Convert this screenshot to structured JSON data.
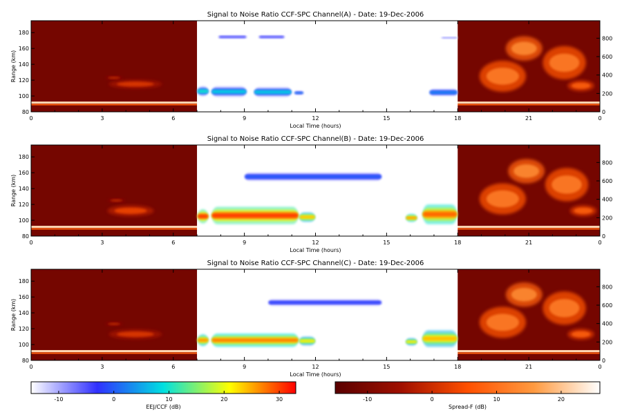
{
  "chart_data": [
    {
      "type": "heatmap",
      "title": "Signal to Noise Ratio CCF-SPC Channel(A) - Date: 19-Dec-2006",
      "xlabel": "Local Time (hours)",
      "ylabel": "Range (km)",
      "xlim": [
        0,
        24
      ],
      "x_tick_labels": [
        "0",
        "3",
        "6",
        "9",
        "12",
        "15",
        "18",
        "21",
        "0"
      ],
      "ylim_left": [
        80,
        195
      ],
      "y_ticks_left": [
        80,
        100,
        120,
        140,
        160,
        180
      ],
      "ylim_right": [
        0,
        990
      ],
      "y_ticks_right": [
        0,
        200,
        400,
        600,
        800
      ],
      "eej_window_hours": [
        7,
        18
      ],
      "eej_layers": [
        {
          "t0": 7.0,
          "t1": 7.5,
          "r0": 100,
          "r1": 112,
          "snr": 10
        },
        {
          "t0": 7.6,
          "t1": 9.1,
          "r0": 99,
          "r1": 112,
          "snr": 8
        },
        {
          "t0": 9.4,
          "t1": 11.0,
          "r0": 99,
          "r1": 111,
          "snr": 8
        },
        {
          "t0": 11.1,
          "t1": 11.5,
          "r0": 101,
          "r1": 107,
          "snr": 3
        },
        {
          "t0": 16.8,
          "t1": 18.0,
          "r0": 99,
          "r1": 110,
          "snr": 3
        },
        {
          "t0": 7.9,
          "t1": 9.1,
          "r0": 171,
          "r1": 178,
          "snr": -4
        },
        {
          "t0": 9.6,
          "t1": 10.7,
          "r0": 171,
          "r1": 178,
          "snr": -4
        },
        {
          "t0": 17.3,
          "t1": 18.0,
          "r0": 171,
          "r1": 176,
          "snr": -8
        }
      ],
      "spreadf_blobs": [
        {
          "t": 4.4,
          "r": 115,
          "w": 1.6,
          "h": 8,
          "level": 2
        },
        {
          "t": 3.5,
          "r": 123,
          "w": 0.5,
          "h": 3,
          "level": 0
        },
        {
          "t": 19.9,
          "r": 125,
          "w": 1.4,
          "h": 28,
          "level": 12
        },
        {
          "t": 20.8,
          "r": 160,
          "w": 1.1,
          "h": 22,
          "level": 14
        },
        {
          "t": 22.5,
          "r": 142,
          "w": 1.3,
          "h": 30,
          "level": 12
        },
        {
          "t": 23.2,
          "r": 113,
          "w": 0.8,
          "h": 10,
          "level": 8
        }
      ]
    },
    {
      "type": "heatmap",
      "title": "Signal to Noise Ratio CCF-SPC Channel(B) - Date: 19-Dec-2006",
      "xlabel": "Local Time (hours)",
      "ylabel": "Range (km)",
      "xlim": [
        0,
        24
      ],
      "x_tick_labels": [
        "0",
        "3",
        "6",
        "9",
        "12",
        "15",
        "18",
        "21",
        "0"
      ],
      "ylim_left": [
        80,
        195
      ],
      "y_ticks_left": [
        80,
        100,
        120,
        140,
        160,
        180
      ],
      "ylim_right": [
        0,
        990
      ],
      "y_ticks_right": [
        0,
        200,
        400,
        600,
        800
      ],
      "eej_window_hours": [
        7,
        18
      ],
      "eej_layers": [
        {
          "t0": 7.0,
          "t1": 7.5,
          "r0": 96,
          "r1": 114,
          "snr": 30
        },
        {
          "t0": 7.6,
          "t1": 11.3,
          "r0": 95,
          "r1": 117,
          "snr": 30
        },
        {
          "t0": 11.3,
          "t1": 12.0,
          "r0": 98,
          "r1": 110,
          "snr": 24
        },
        {
          "t0": 15.8,
          "t1": 16.3,
          "r0": 98,
          "r1": 108,
          "snr": 26
        },
        {
          "t0": 16.5,
          "t1": 18.0,
          "r0": 95,
          "r1": 120,
          "snr": 28
        },
        {
          "t0": 9.0,
          "t1": 14.8,
          "r0": 148,
          "r1": 162,
          "snr": 0
        }
      ],
      "spreadf_blobs": [
        {
          "t": 4.2,
          "r": 112,
          "w": 1.4,
          "h": 10,
          "level": 4
        },
        {
          "t": 3.6,
          "r": 125,
          "w": 0.5,
          "h": 3,
          "level": 0
        },
        {
          "t": 19.9,
          "r": 127,
          "w": 1.4,
          "h": 28,
          "level": 12
        },
        {
          "t": 20.9,
          "r": 162,
          "w": 1.1,
          "h": 22,
          "level": 14
        },
        {
          "t": 22.6,
          "r": 145,
          "w": 1.3,
          "h": 30,
          "level": 12
        },
        {
          "t": 23.3,
          "r": 112,
          "w": 0.8,
          "h": 10,
          "level": 8
        }
      ]
    },
    {
      "type": "heatmap",
      "title": "Signal to Noise Ratio CCF-SPC Channel(C) - Date: 19-Dec-2006",
      "xlabel": "Local Time (hours)",
      "ylabel": "Range (km)",
      "xlim": [
        0,
        24
      ],
      "x_tick_labels": [
        "0",
        "3",
        "6",
        "9",
        "12",
        "15",
        "18",
        "21",
        "0"
      ],
      "ylim_left": [
        80,
        195
      ],
      "y_ticks_left": [
        80,
        100,
        120,
        140,
        160,
        180
      ],
      "ylim_right": [
        0,
        990
      ],
      "y_ticks_right": [
        0,
        200,
        400,
        600,
        800
      ],
      "eej_window_hours": [
        7,
        18
      ],
      "eej_layers": [
        {
          "t0": 7.0,
          "t1": 7.5,
          "r0": 98,
          "r1": 113,
          "snr": 26
        },
        {
          "t0": 7.6,
          "t1": 11.3,
          "r0": 97,
          "r1": 114,
          "snr": 27
        },
        {
          "t0": 11.3,
          "t1": 12.0,
          "r0": 99,
          "r1": 110,
          "snr": 22
        },
        {
          "t0": 15.8,
          "t1": 16.3,
          "r0": 99,
          "r1": 108,
          "snr": 22
        },
        {
          "t0": 16.5,
          "t1": 18.0,
          "r0": 97,
          "r1": 118,
          "snr": 24
        },
        {
          "t0": 10.0,
          "t1": 14.8,
          "r0": 147,
          "r1": 159,
          "snr": -2
        }
      ],
      "spreadf_blobs": [
        {
          "t": 4.4,
          "r": 113,
          "w": 1.6,
          "h": 9,
          "level": 2
        },
        {
          "t": 3.5,
          "r": 126,
          "w": 0.5,
          "h": 3,
          "level": 0
        },
        {
          "t": 19.9,
          "r": 128,
          "w": 1.4,
          "h": 28,
          "level": 12
        },
        {
          "t": 20.8,
          "r": 163,
          "w": 1.1,
          "h": 22,
          "level": 14
        },
        {
          "t": 22.5,
          "r": 146,
          "w": 1.3,
          "h": 30,
          "level": 12
        },
        {
          "t": 23.2,
          "r": 113,
          "w": 0.8,
          "h": 10,
          "level": 8
        }
      ]
    }
  ],
  "colorbars": [
    {
      "label": "EEJ/CCF (dB)",
      "range": [
        -15,
        33
      ],
      "ticks": [
        -10,
        0,
        10,
        20,
        30
      ],
      "tick_labels": [
        "-10",
        "0",
        "10",
        "20",
        "30"
      ],
      "colors": [
        "#ffffff",
        "#3030ff",
        "#00e0e0",
        "#ffff00",
        "#ff0000"
      ]
    },
    {
      "label": "Spread-F (dB)",
      "range": [
        -15,
        26
      ],
      "ticks": [
        -10,
        0,
        10,
        20
      ],
      "tick_labels": [
        "-10",
        "0",
        "10",
        "20"
      ],
      "colors": [
        "#5a0000",
        "#a01000",
        "#ff5000",
        "#ff9a40",
        "#ffffff"
      ]
    }
  ]
}
